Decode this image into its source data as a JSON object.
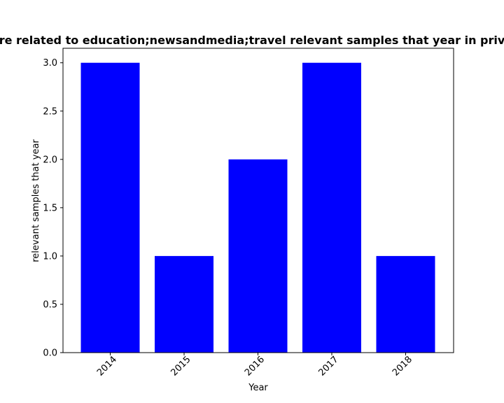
{
  "chart_data": {
    "type": "bar",
    "title": "re related to education;newsandmedia;travel relevant samples that year in priv",
    "xlabel": "Year",
    "ylabel": "relevant samples that year",
    "categories": [
      "2014",
      "2015",
      "2016",
      "2017",
      "2018"
    ],
    "values": [
      3,
      1,
      2,
      3,
      1
    ],
    "ylim": [
      0,
      3.15
    ],
    "yticks": [
      "0.0",
      "0.5",
      "1.0",
      "1.5",
      "2.0",
      "2.5",
      "3.0"
    ],
    "bar_color": "#0000ff",
    "grid": false,
    "legend": "none"
  }
}
